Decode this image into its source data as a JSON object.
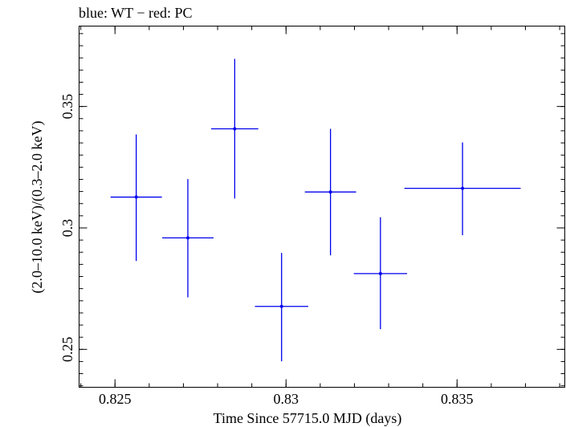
{
  "chart_data": {
    "type": "scatter",
    "title": "blue: WT − red: PC",
    "xlabel": "Time Since 57715.0 MJD (days)",
    "ylabel": "(2.0–10.0 keV)/(0.3–2.0 keV)",
    "xlim": [
      0.82395,
      0.83815
    ],
    "ylim": [
      0.2344,
      0.3831
    ],
    "x_ticks": [
      0.825,
      0.83,
      0.835
    ],
    "x_tick_labels": [
      "0.825",
      "0.83",
      "0.835"
    ],
    "y_ticks": [
      0.25,
      0.3,
      0.35
    ],
    "y_tick_labels": [
      "0.25",
      "0.3",
      "0.35"
    ],
    "grid": false,
    "series": [
      {
        "color": "#0000ee",
        "points": [
          {
            "x": 0.82562,
            "y": 0.3127,
            "xerr": 0.00075,
            "ylo": 0.2864,
            "yhi": 0.3385
          },
          {
            "x": 0.82713,
            "y": 0.2959,
            "xerr": 0.00075,
            "ylo": 0.2714,
            "yhi": 0.3201
          },
          {
            "x": 0.8285,
            "y": 0.3408,
            "xerr": 0.00069,
            "ylo": 0.3121,
            "yhi": 0.3696
          },
          {
            "x": 0.82987,
            "y": 0.2677,
            "xerr": 0.00078,
            "ylo": 0.2451,
            "yhi": 0.2897
          },
          {
            "x": 0.8313,
            "y": 0.3148,
            "xerr": 0.00075,
            "ylo": 0.2887,
            "yhi": 0.3408
          },
          {
            "x": 0.83276,
            "y": 0.2812,
            "xerr": 0.00078,
            "ylo": 0.2583,
            "yhi": 0.3044
          },
          {
            "x": 0.83516,
            "y": 0.3163,
            "xerr": 0.0017,
            "ylo": 0.297,
            "yhi": 0.3352
          }
        ]
      }
    ]
  }
}
